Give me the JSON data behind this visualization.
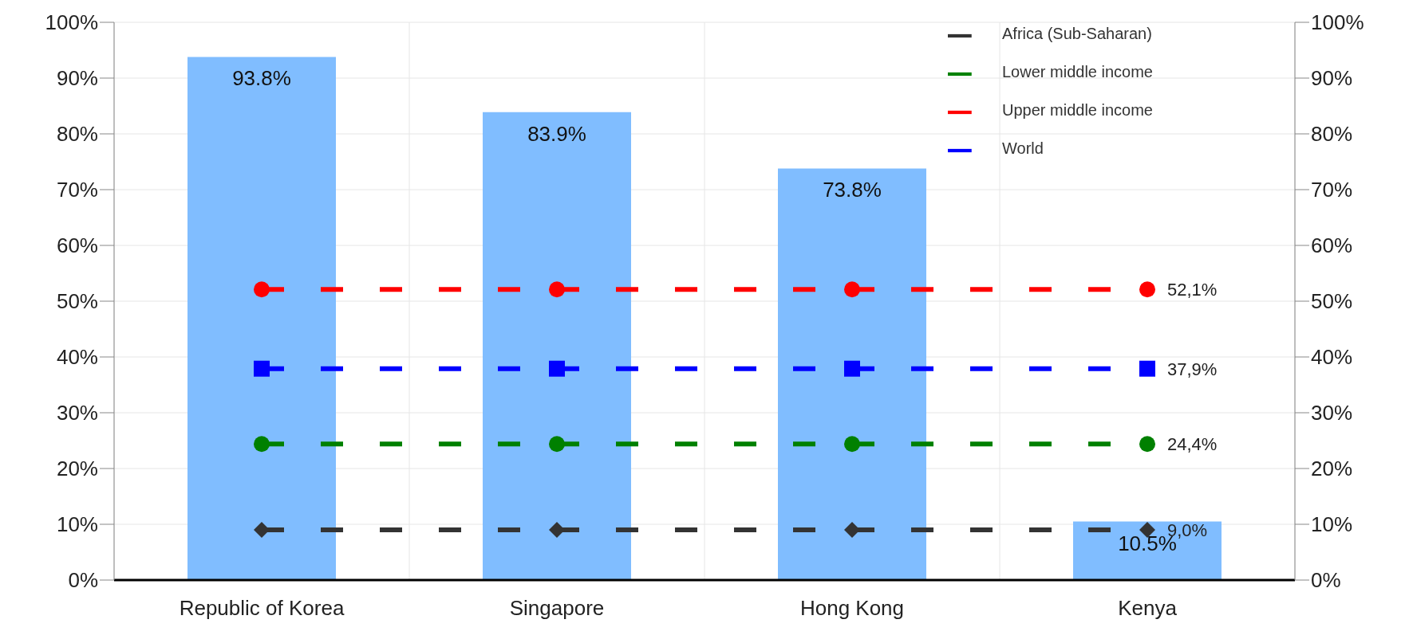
{
  "chart_data": {
    "type": "bar",
    "categories": [
      "Republic of Korea",
      "Singapore",
      "Hong Kong",
      "Kenya"
    ],
    "series": [
      {
        "type": "bar",
        "color": "#80bdff",
        "values": [
          93.8,
          83.9,
          73.8,
          10.5
        ],
        "value_labels": [
          "93.8%",
          "83.9%",
          "73.8%",
          "10.5%"
        ]
      },
      {
        "type": "line",
        "name": "World",
        "color": "#0000ff",
        "marker": "square",
        "line_style": "dashed",
        "values": [
          37.9,
          37.9,
          37.9,
          37.9
        ],
        "value_labels": [
          null,
          null,
          null,
          "37,9%"
        ]
      },
      {
        "type": "line",
        "name": "Upper middle income",
        "color": "#ff0000",
        "marker": "circle",
        "line_style": "dashed",
        "values": [
          52.1,
          52.1,
          52.1,
          52.1
        ],
        "value_labels": [
          null,
          null,
          null,
          "52,1%"
        ]
      },
      {
        "type": "line",
        "name": "Lower middle income",
        "color": "#008000",
        "marker": "circle",
        "line_style": "dashed",
        "values": [
          24.4,
          24.4,
          24.4,
          24.4
        ],
        "value_labels": [
          null,
          null,
          null,
          "24,4%"
        ]
      },
      {
        "type": "line",
        "name": "Africa (Sub-Saharan)",
        "color": "#333333",
        "marker": "diamond",
        "line_style": "dashed",
        "values": [
          9.0,
          9.0,
          9.0,
          9.0
        ],
        "value_labels": [
          null,
          null,
          null,
          "9,0%"
        ]
      }
    ],
    "ylim": [
      0,
      100
    ],
    "yticks": [
      {
        "value": 0,
        "label": "0%"
      },
      {
        "value": 10,
        "label": "10%"
      },
      {
        "value": 20,
        "label": "20%"
      },
      {
        "value": 30,
        "label": "30%"
      },
      {
        "value": 40,
        "label": "40%"
      },
      {
        "value": 50,
        "label": "50%"
      },
      {
        "value": 60,
        "label": "60%"
      },
      {
        "value": 70,
        "label": "70%"
      },
      {
        "value": 80,
        "label": "80%"
      },
      {
        "value": 90,
        "label": "90%"
      },
      {
        "value": 100,
        "label": "100%"
      }
    ],
    "y2lim": [
      0,
      100
    ],
    "y2ticks": [
      {
        "value": 0,
        "label": "0%"
      },
      {
        "value": 10,
        "label": "10%"
      },
      {
        "value": 20,
        "label": "20%"
      },
      {
        "value": 30,
        "label": "30%"
      },
      {
        "value": 40,
        "label": "40%"
      },
      {
        "value": 50,
        "label": "50%"
      },
      {
        "value": 60,
        "label": "60%"
      },
      {
        "value": 70,
        "label": "70%"
      },
      {
        "value": 80,
        "label": "80%"
      },
      {
        "value": 90,
        "label": "90%"
      },
      {
        "value": 100,
        "label": "100%"
      }
    ],
    "grid": true,
    "legend": "top right"
  }
}
